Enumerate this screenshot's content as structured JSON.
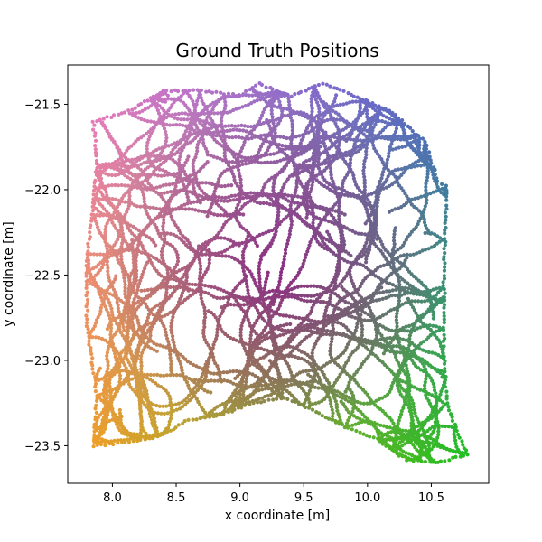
{
  "chart_data": {
    "type": "scatter",
    "title": "Ground Truth Positions",
    "xlabel": "x coordinate [m]",
    "ylabel": "y coordinate [m]",
    "xlim": [
      7.65,
      10.95
    ],
    "ylim": [
      -23.72,
      -21.27
    ],
    "x_ticks": [
      8.0,
      8.5,
      9.0,
      9.5,
      10.0,
      10.5
    ],
    "x_tick_labels": [
      "8.0",
      "8.5",
      "9.0",
      "9.5",
      "10.0",
      "10.5"
    ],
    "y_ticks": [
      -21.5,
      -22.0,
      -22.5,
      -23.0,
      -23.5
    ],
    "y_tick_labels": [
      "−21.5",
      "−22.0",
      "−22.5",
      "−23.0",
      "−23.5"
    ],
    "grid": false,
    "legend": "none",
    "color_mapping": "2D position colormap: top-left pink, top-right blue, center purple, bottom-left orange, bottom-right green",
    "corner_colors": {
      "top_left": "#e878c8",
      "top_right": "#4060d0",
      "center": "#8a0a88",
      "bottom_left": "#f0a020",
      "bottom_right": "#20c020"
    },
    "trajectory_extent": {
      "boundary": [
        [
          7.85,
          -21.6
        ],
        [
          8.1,
          -21.55
        ],
        [
          8.4,
          -21.42
        ],
        [
          8.7,
          -21.42
        ],
        [
          9.0,
          -21.45
        ],
        [
          9.15,
          -21.38
        ],
        [
          9.4,
          -21.45
        ],
        [
          9.65,
          -21.38
        ],
        [
          9.9,
          -21.45
        ],
        [
          10.2,
          -21.55
        ],
        [
          10.45,
          -21.72
        ],
        [
          10.55,
          -21.95
        ],
        [
          10.62,
          -21.98
        ],
        [
          10.6,
          -22.5
        ],
        [
          10.6,
          -23.0
        ],
        [
          10.62,
          -23.25
        ],
        [
          10.78,
          -23.55
        ],
        [
          10.55,
          -23.6
        ],
        [
          10.3,
          -23.58
        ],
        [
          10.05,
          -23.45
        ],
        [
          9.85,
          -23.4
        ],
        [
          9.6,
          -23.3
        ],
        [
          9.35,
          -23.22
        ],
        [
          9.1,
          -23.25
        ],
        [
          8.85,
          -23.32
        ],
        [
          8.6,
          -23.35
        ],
        [
          8.35,
          -23.45
        ],
        [
          8.1,
          -23.48
        ],
        [
          7.85,
          -23.5
        ],
        [
          7.88,
          -23.2
        ],
        [
          7.8,
          -22.8
        ],
        [
          7.8,
          -22.4
        ],
        [
          7.85,
          -22.1
        ],
        [
          7.88,
          -21.85
        ]
      ]
    }
  }
}
